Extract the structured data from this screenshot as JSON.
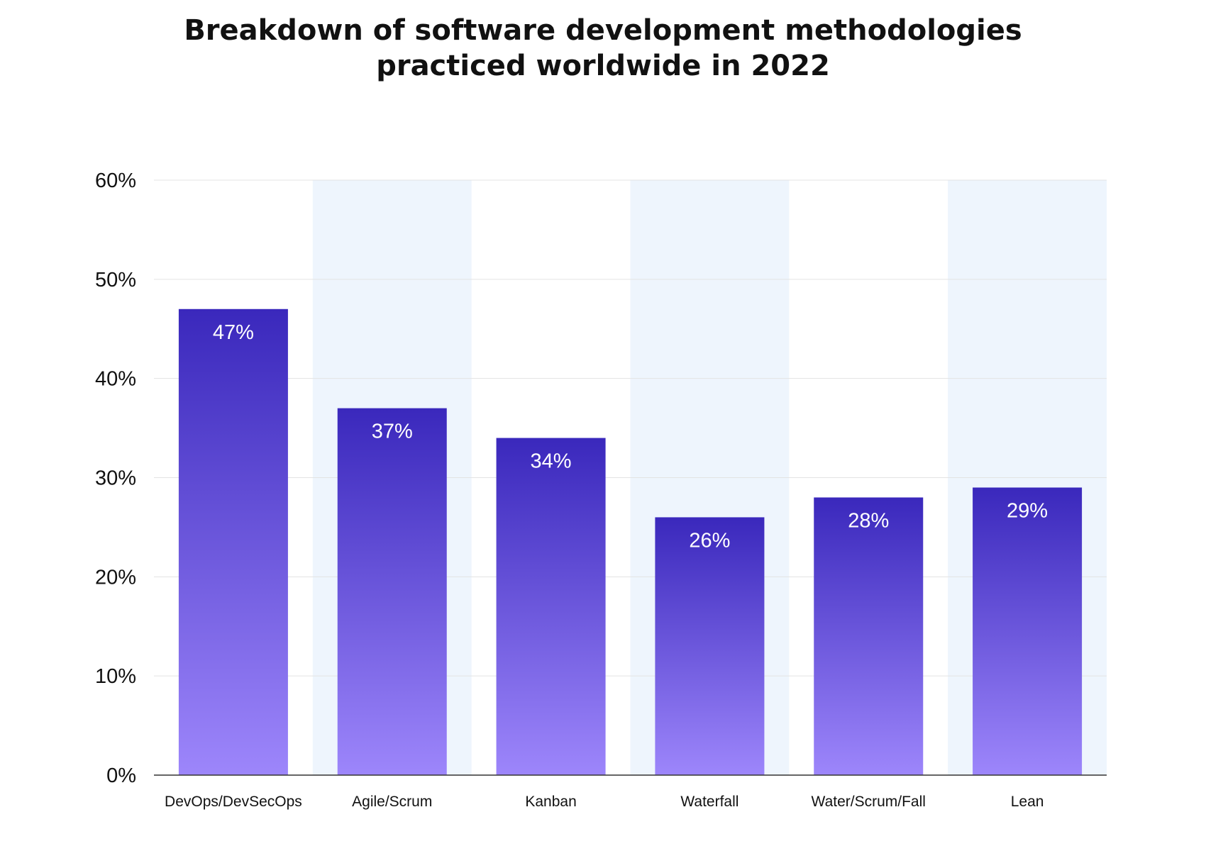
{
  "chart_data": {
    "type": "bar",
    "title": "Breakdown of software development methodologies",
    "subtitle": "practiced worldwide in 2022",
    "categories": [
      "DevOps/DevSecOps",
      "Agile/Scrum",
      "Kanban",
      "Waterfall",
      "Water/Scrum/Fall",
      "Lean"
    ],
    "values": [
      47,
      37,
      34,
      26,
      28,
      29
    ],
    "data_labels": [
      "47%",
      "37%",
      "34%",
      "26%",
      "28%",
      "29%"
    ],
    "yticks": [
      0,
      10,
      20,
      30,
      40,
      50,
      60
    ],
    "ytick_labels": [
      "0%",
      "10%",
      "20%",
      "30%",
      "40%",
      "50%",
      "60%"
    ],
    "ylim": [
      0,
      60
    ],
    "grid": true,
    "colors": {
      "bar_top": "#3a28bc",
      "bar_bottom": "#9d86fb",
      "band": "#eef5fd",
      "grid": "#e3e3e3",
      "axis": "#333333"
    }
  }
}
